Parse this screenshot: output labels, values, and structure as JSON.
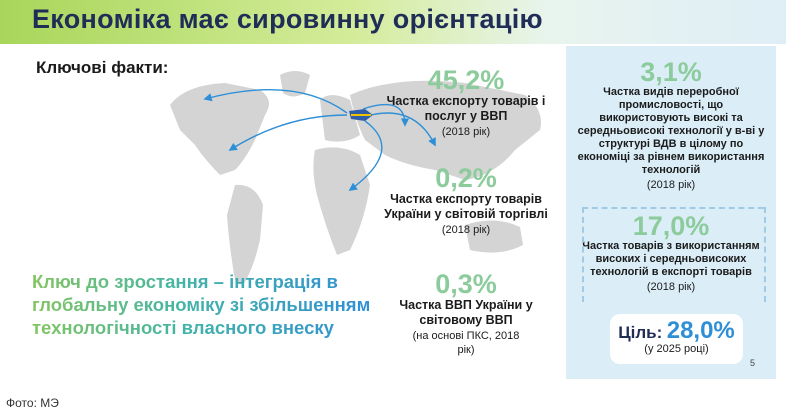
{
  "title": "Економіка має сировинну орієнтацію",
  "key_facts_label": "Ключові факти:",
  "growth_text": "Ключ до зростання – інтеграція в глобальну економіку зі збільшенням технологічності власного внеску",
  "stats": [
    {
      "value": "45,2%",
      "label": "Частка експорту товарів і послуг у ВВП",
      "note": "(2018 рік)"
    },
    {
      "value": "0,2%",
      "label": "Частка експорту товарів України у світовій торгівлі",
      "note": "(2018 рік)"
    },
    {
      "value": "0,3%",
      "label": "Частка ВВП України у світовому ВВП",
      "note": "(на основі ПКС, 2018 рік)"
    }
  ],
  "panel_stats": [
    {
      "value": "3,1%",
      "label": "Частка видів переробної промисловості, що використовують високі та середньовисокі технології у в-ві у структурі ВДВ в цілому по економіці за рівнем використання технологій",
      "note": "(2018 рік)"
    },
    {
      "value": "17,0%",
      "label": "Частка товарів з використанням високих і середньовисоких технологій в експорті товарів",
      "note": "(2018 рік)"
    }
  ],
  "goal": {
    "label": "Ціль:",
    "value": "28,0%",
    "note": "(у 2025 році)"
  },
  "page_number": "5",
  "caption": "Фото: МЭ",
  "colors": {
    "accent_green": "#8ccb9b",
    "accent_blue": "#2f8fd6",
    "panel_bg": "#dbeef8",
    "title_color": "#1f2d57"
  }
}
